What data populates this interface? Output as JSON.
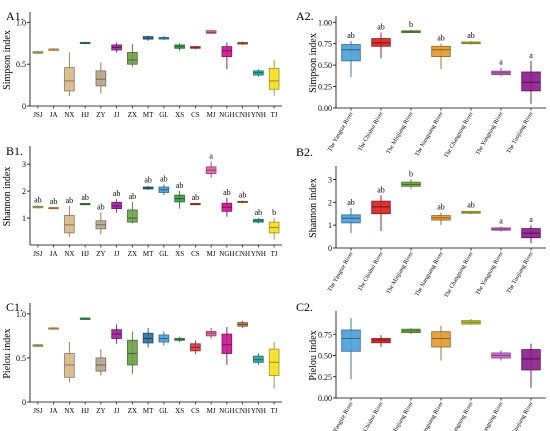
{
  "panels": [
    {
      "id": "A1",
      "label": "A1.",
      "ylabel": "Simpson index",
      "ylim": [
        0,
        1.1
      ],
      "yticks": [
        0,
        0.5,
        1.0
      ],
      "ytick_labels": [
        "0",
        "0.5",
        "1.0"
      ],
      "categories": [
        "JSJ",
        "JA",
        "NX",
        "HJ",
        "ZY",
        "JJ",
        "ZX",
        "MT",
        "GL",
        "XS",
        "CS",
        "MJ",
        "NGH",
        "CNH",
        "YNH",
        "TJ"
      ],
      "colors": [
        "#d8d87a",
        "#f2a65a",
        "#d8b98a",
        "#2e9b4b",
        "#b7a58a",
        "#a020a0",
        "#6f9e4a",
        "#2b6e9e",
        "#4a9fd8",
        "#3a9a4a",
        "#d43a3a",
        "#e060a8",
        "#c8148c",
        "#b8783a",
        "#1fa89c",
        "#f5e020"
      ],
      "boxes": [
        {
          "min": 0.62,
          "q1": 0.63,
          "med": 0.64,
          "q3": 0.65,
          "max": 0.66
        },
        {
          "min": 0.66,
          "q1": 0.67,
          "med": 0.68,
          "q3": 0.68,
          "max": 0.69
        },
        {
          "min": 0.12,
          "q1": 0.18,
          "med": 0.3,
          "q3": 0.46,
          "max": 0.64
        },
        {
          "min": 0.74,
          "q1": 0.75,
          "med": 0.75,
          "q3": 0.76,
          "max": 0.77
        },
        {
          "min": 0.15,
          "q1": 0.24,
          "med": 0.32,
          "q3": 0.42,
          "max": 0.52
        },
        {
          "min": 0.64,
          "q1": 0.67,
          "med": 0.7,
          "q3": 0.73,
          "max": 0.76
        },
        {
          "min": 0.47,
          "q1": 0.5,
          "med": 0.55,
          "q3": 0.64,
          "max": 0.74
        },
        {
          "min": 0.78,
          "q1": 0.8,
          "med": 0.81,
          "q3": 0.83,
          "max": 0.84
        },
        {
          "min": 0.79,
          "q1": 0.8,
          "med": 0.81,
          "q3": 0.82,
          "max": 0.84
        },
        {
          "min": 0.66,
          "q1": 0.69,
          "med": 0.71,
          "q3": 0.73,
          "max": 0.75
        },
        {
          "min": 0.68,
          "q1": 0.69,
          "med": 0.7,
          "q3": 0.71,
          "max": 0.72
        },
        {
          "min": 0.86,
          "q1": 0.87,
          "med": 0.88,
          "q3": 0.9,
          "max": 0.91
        },
        {
          "min": 0.44,
          "q1": 0.59,
          "med": 0.66,
          "q3": 0.71,
          "max": 0.76
        },
        {
          "min": 0.73,
          "q1": 0.74,
          "med": 0.75,
          "q3": 0.76,
          "max": 0.77
        },
        {
          "min": 0.35,
          "q1": 0.37,
          "med": 0.4,
          "q3": 0.42,
          "max": 0.44
        },
        {
          "min": 0.12,
          "q1": 0.2,
          "med": 0.3,
          "q3": 0.45,
          "max": 0.55
        }
      ],
      "letters": [
        "",
        "",
        "",
        "",
        "",
        "",
        "",
        "",
        "",
        "",
        "",
        "",
        "",
        "",
        "",
        ""
      ]
    },
    {
      "id": "B1",
      "label": "B1.",
      "ylabel": "Shannon index",
      "ylim": [
        0,
        3.6
      ],
      "yticks": [
        1,
        2,
        3
      ],
      "ytick_labels": [
        "1",
        "2",
        "3"
      ],
      "categories": [
        "JSJ",
        "JA",
        "NX",
        "HJ",
        "ZY",
        "JJ",
        "ZX",
        "MT",
        "GL",
        "XS",
        "CS",
        "MJ",
        "NGH",
        "CNH",
        "YNH",
        "TJ"
      ],
      "colors": [
        "#d8d87a",
        "#f2a65a",
        "#d8b98a",
        "#2e9b4b",
        "#b7a58a",
        "#a020a0",
        "#6f9e4a",
        "#2b6e9e",
        "#4a9fd8",
        "#3a9a4a",
        "#d43a3a",
        "#e060a8",
        "#c8148c",
        "#b8783a",
        "#1fa89c",
        "#f5e020"
      ],
      "boxes": [
        {
          "min": 1.35,
          "q1": 1.38,
          "med": 1.41,
          "q3": 1.44,
          "max": 1.47
        },
        {
          "min": 1.33,
          "q1": 1.35,
          "med": 1.37,
          "q3": 1.39,
          "max": 1.41
        },
        {
          "min": 0.3,
          "q1": 0.45,
          "med": 0.75,
          "q3": 1.1,
          "max": 1.45
        },
        {
          "min": 1.48,
          "q1": 1.5,
          "med": 1.52,
          "q3": 1.54,
          "max": 1.56
        },
        {
          "min": 0.4,
          "q1": 0.6,
          "med": 0.75,
          "q3": 0.9,
          "max": 1.2
        },
        {
          "min": 1.2,
          "q1": 1.35,
          "med": 1.45,
          "q3": 1.58,
          "max": 1.7
        },
        {
          "min": 0.8,
          "q1": 0.85,
          "med": 1.0,
          "q3": 1.3,
          "max": 1.6
        },
        {
          "min": 2.05,
          "q1": 2.08,
          "med": 2.12,
          "q3": 2.15,
          "max": 2.2
        },
        {
          "min": 1.85,
          "q1": 1.95,
          "med": 2.05,
          "q3": 2.15,
          "max": 2.25
        },
        {
          "min": 1.35,
          "q1": 1.6,
          "med": 1.72,
          "q3": 1.85,
          "max": 2.0
        },
        {
          "min": 1.48,
          "q1": 1.5,
          "med": 1.52,
          "q3": 1.54,
          "max": 1.56
        },
        {
          "min": 2.5,
          "q1": 2.65,
          "med": 2.78,
          "q3": 2.9,
          "max": 3.1
        },
        {
          "min": 1.05,
          "q1": 1.25,
          "med": 1.4,
          "q3": 1.55,
          "max": 1.75
        },
        {
          "min": 1.55,
          "q1": 1.58,
          "med": 1.6,
          "q3": 1.62,
          "max": 1.65
        },
        {
          "min": 0.8,
          "q1": 0.85,
          "med": 0.9,
          "q3": 0.95,
          "max": 1.0
        },
        {
          "min": 0.2,
          "q1": 0.45,
          "med": 0.65,
          "q3": 0.85,
          "max": 1.0
        }
      ],
      "letters": [
        "ab",
        "ab",
        "ab",
        "ab",
        "ab",
        "ab",
        "ab",
        "ab",
        "ab",
        "ab",
        "ab",
        "a",
        "ab",
        "ab",
        "ab",
        "b"
      ]
    },
    {
      "id": "C1",
      "label": "C1.",
      "ylabel": "Pielou index",
      "ylim": [
        0,
        1.1
      ],
      "yticks": [
        0,
        0.5,
        1.0
      ],
      "ytick_labels": [
        "0",
        "0.5",
        "1.0"
      ],
      "categories": [
        "JSJ",
        "JA",
        "NX",
        "HJ",
        "ZY",
        "JJ",
        "ZX",
        "MT",
        "GL",
        "XS",
        "CS",
        "MJ",
        "NGH",
        "CNH",
        "YNH",
        "TJ"
      ],
      "colors": [
        "#d8d87a",
        "#f2a65a",
        "#d8b98a",
        "#2e9b4b",
        "#b7a58a",
        "#a020a0",
        "#6f9e4a",
        "#2b6e9e",
        "#4a9fd8",
        "#3a9a4a",
        "#d43a3a",
        "#e060a8",
        "#c8148c",
        "#b8783a",
        "#1fa89c",
        "#f5e020"
      ],
      "boxes": [
        {
          "min": 0.62,
          "q1": 0.63,
          "med": 0.64,
          "q3": 0.65,
          "max": 0.66
        },
        {
          "min": 0.82,
          "q1": 0.83,
          "med": 0.83,
          "q3": 0.84,
          "max": 0.85
        },
        {
          "min": 0.22,
          "q1": 0.28,
          "med": 0.42,
          "q3": 0.55,
          "max": 0.68
        },
        {
          "min": 0.93,
          "q1": 0.94,
          "med": 0.95,
          "q3": 0.95,
          "max": 0.96
        },
        {
          "min": 0.3,
          "q1": 0.35,
          "med": 0.42,
          "q3": 0.5,
          "max": 0.6
        },
        {
          "min": 0.66,
          "q1": 0.72,
          "med": 0.77,
          "q3": 0.82,
          "max": 0.88
        },
        {
          "min": 0.32,
          "q1": 0.42,
          "med": 0.55,
          "q3": 0.7,
          "max": 0.8
        },
        {
          "min": 0.62,
          "q1": 0.67,
          "med": 0.72,
          "q3": 0.78,
          "max": 0.84
        },
        {
          "min": 0.64,
          "q1": 0.68,
          "med": 0.72,
          "q3": 0.76,
          "max": 0.8
        },
        {
          "min": 0.68,
          "q1": 0.7,
          "med": 0.71,
          "q3": 0.72,
          "max": 0.74
        },
        {
          "min": 0.54,
          "q1": 0.58,
          "med": 0.62,
          "q3": 0.66,
          "max": 0.7
        },
        {
          "min": 0.72,
          "q1": 0.75,
          "med": 0.78,
          "q3": 0.8,
          "max": 0.84
        },
        {
          "min": 0.42,
          "q1": 0.55,
          "med": 0.65,
          "q3": 0.77,
          "max": 0.85
        },
        {
          "min": 0.84,
          "q1": 0.86,
          "med": 0.88,
          "q3": 0.9,
          "max": 0.92
        },
        {
          "min": 0.42,
          "q1": 0.45,
          "med": 0.48,
          "q3": 0.52,
          "max": 0.55
        },
        {
          "min": 0.15,
          "q1": 0.3,
          "med": 0.45,
          "q3": 0.6,
          "max": 0.68
        }
      ],
      "letters": [
        "",
        "",
        "",
        "",
        "",
        "",
        "",
        "",
        "",
        "",
        "",
        "",
        "",
        "",
        "",
        ""
      ]
    },
    {
      "id": "A2",
      "label": "A2.",
      "ylabel": "Simpson index",
      "ylim": [
        0,
        1.05
      ],
      "yticks": [
        0,
        0.25,
        0.5,
        0.75,
        1.0
      ],
      "ytick_labels": [
        "0.00",
        "0.25",
        "0.50",
        "0.75",
        "1.00"
      ],
      "categories": [
        "The Yangtze River",
        "The Chishui River",
        "The Minjiang River",
        "The Nanguang River",
        "The Changning River",
        "The Yongning River",
        "The Tuojiang River"
      ],
      "colors": [
        "#4a9fd8",
        "#d42020",
        "#6aa83a",
        "#e09a30",
        "#c8c832",
        "#c860c8",
        "#8a1a8a"
      ],
      "boxes": [
        {
          "min": 0.36,
          "q1": 0.55,
          "med": 0.68,
          "q3": 0.74,
          "max": 0.78
        },
        {
          "min": 0.58,
          "q1": 0.72,
          "med": 0.76,
          "q3": 0.81,
          "max": 0.88
        },
        {
          "min": 0.87,
          "q1": 0.88,
          "med": 0.89,
          "q3": 0.9,
          "max": 0.91
        },
        {
          "min": 0.45,
          "q1": 0.6,
          "med": 0.68,
          "q3": 0.72,
          "max": 0.75
        },
        {
          "min": 0.74,
          "q1": 0.75,
          "med": 0.76,
          "q3": 0.77,
          "max": 0.78
        },
        {
          "min": 0.37,
          "q1": 0.39,
          "med": 0.41,
          "q3": 0.43,
          "max": 0.47
        },
        {
          "min": 0.05,
          "q1": 0.2,
          "med": 0.3,
          "q3": 0.42,
          "max": 0.55
        }
      ],
      "letters": [
        "ab",
        "ab",
        "b",
        "ab",
        "ab",
        "a",
        "a"
      ]
    },
    {
      "id": "B2",
      "label": "B2.",
      "ylabel": "Shannon index",
      "ylim": [
        0,
        3.5
      ],
      "yticks": [
        0,
        1,
        2,
        3
      ],
      "ytick_labels": [
        "0",
        "1",
        "2",
        "3"
      ],
      "categories": [
        "The Yangtze River",
        "The Chishui River",
        "The Minjiang River",
        "The Nanguang River",
        "The Changning River",
        "The Yongning River",
        "The Tuojiang River"
      ],
      "colors": [
        "#4a9fd8",
        "#d42020",
        "#6aa83a",
        "#e09a30",
        "#c8c832",
        "#c860c8",
        "#8a1a8a"
      ],
      "boxes": [
        {
          "min": 0.65,
          "q1": 1.1,
          "med": 1.3,
          "q3": 1.45,
          "max": 1.75
        },
        {
          "min": 0.75,
          "q1": 1.5,
          "med": 1.8,
          "q3": 2.05,
          "max": 2.3
        },
        {
          "min": 2.6,
          "q1": 2.7,
          "med": 2.78,
          "q3": 2.88,
          "max": 3.0
        },
        {
          "min": 1.0,
          "q1": 1.22,
          "med": 1.32,
          "q3": 1.42,
          "max": 1.55
        },
        {
          "min": 1.48,
          "q1": 1.52,
          "med": 1.56,
          "q3": 1.6,
          "max": 1.63
        },
        {
          "min": 0.72,
          "q1": 0.78,
          "med": 0.82,
          "q3": 0.88,
          "max": 0.93
        },
        {
          "min": 0.2,
          "q1": 0.45,
          "med": 0.65,
          "q3": 0.85,
          "max": 1.0
        }
      ],
      "letters": [
        "ab",
        "ab",
        "b",
        "ab",
        "ab",
        "a",
        "a"
      ]
    },
    {
      "id": "C2",
      "label": "C2.",
      "ylabel": "Pielou index",
      "ylim": [
        0,
        1.0
      ],
      "yticks": [
        0,
        0.25,
        0.5,
        0.75
      ],
      "ytick_labels": [
        "0.00",
        "0.25",
        "0.50",
        "0.75"
      ],
      "categories": [
        "The Yangtze River",
        "The Chishui River",
        "The Minjiang River",
        "The Nanguang River",
        "The Changning River",
        "The Yongning River",
        "The Tuojiang River"
      ],
      "colors": [
        "#4a9fd8",
        "#d42020",
        "#6aa83a",
        "#e09a30",
        "#c8c832",
        "#c860c8",
        "#8a1a8a"
      ],
      "boxes": [
        {
          "min": 0.22,
          "q1": 0.55,
          "med": 0.7,
          "q3": 0.8,
          "max": 0.94
        },
        {
          "min": 0.6,
          "q1": 0.65,
          "med": 0.68,
          "q3": 0.7,
          "max": 0.74
        },
        {
          "min": 0.75,
          "q1": 0.77,
          "med": 0.79,
          "q3": 0.81,
          "max": 0.82
        },
        {
          "min": 0.44,
          "q1": 0.6,
          "med": 0.7,
          "q3": 0.78,
          "max": 0.85
        },
        {
          "min": 0.86,
          "q1": 0.87,
          "med": 0.89,
          "q3": 0.91,
          "max": 0.93
        },
        {
          "min": 0.44,
          "q1": 0.47,
          "med": 0.5,
          "q3": 0.53,
          "max": 0.56
        },
        {
          "min": 0.12,
          "q1": 0.33,
          "med": 0.46,
          "q3": 0.57,
          "max": 0.64
        }
      ],
      "letters": [
        "",
        "",
        "",
        "",
        "",
        "",
        ""
      ]
    }
  ],
  "chart_data": [
    {
      "type": "box",
      "panel": "A1",
      "ylabel": "Simpson index",
      "ylim": [
        0,
        1.1
      ],
      "categories": [
        "JSJ",
        "JA",
        "NX",
        "HJ",
        "ZY",
        "JJ",
        "ZX",
        "MT",
        "GL",
        "XS",
        "CS",
        "MJ",
        "NGH",
        "CNH",
        "YNH",
        "TJ"
      ],
      "medians": [
        0.64,
        0.68,
        0.3,
        0.75,
        0.32,
        0.7,
        0.55,
        0.81,
        0.81,
        0.71,
        0.7,
        0.88,
        0.66,
        0.75,
        0.4,
        0.3
      ]
    },
    {
      "type": "box",
      "panel": "B1",
      "ylabel": "Shannon index",
      "ylim": [
        0,
        3.6
      ],
      "categories": [
        "JSJ",
        "JA",
        "NX",
        "HJ",
        "ZY",
        "JJ",
        "ZX",
        "MT",
        "GL",
        "XS",
        "CS",
        "MJ",
        "NGH",
        "CNH",
        "YNH",
        "TJ"
      ],
      "medians": [
        1.41,
        1.37,
        0.75,
        1.52,
        0.75,
        1.45,
        1.0,
        2.12,
        2.05,
        1.72,
        1.52,
        2.78,
        1.4,
        1.6,
        0.9,
        0.65
      ],
      "letters": [
        "ab",
        "ab",
        "ab",
        "ab",
        "ab",
        "ab",
        "ab",
        "ab",
        "ab",
        "ab",
        "ab",
        "a",
        "ab",
        "ab",
        "ab",
        "b"
      ]
    },
    {
      "type": "box",
      "panel": "C1",
      "ylabel": "Pielou index",
      "ylim": [
        0,
        1.1
      ],
      "categories": [
        "JSJ",
        "JA",
        "NX",
        "HJ",
        "ZY",
        "JJ",
        "ZX",
        "MT",
        "GL",
        "XS",
        "CS",
        "MJ",
        "NGH",
        "CNH",
        "YNH",
        "TJ"
      ],
      "medians": [
        0.64,
        0.83,
        0.42,
        0.95,
        0.42,
        0.77,
        0.55,
        0.72,
        0.72,
        0.71,
        0.62,
        0.78,
        0.65,
        0.88,
        0.48,
        0.45
      ]
    },
    {
      "type": "box",
      "panel": "A2",
      "ylabel": "Simpson index",
      "ylim": [
        0,
        1.05
      ],
      "categories": [
        "The Yangtze River",
        "The Chishui River",
        "The Minjiang River",
        "The Nanguang River",
        "The Changning River",
        "The Yongning River",
        "The Tuojiang River"
      ],
      "medians": [
        0.68,
        0.76,
        0.89,
        0.68,
        0.76,
        0.41,
        0.3
      ],
      "letters": [
        "ab",
        "ab",
        "b",
        "ab",
        "ab",
        "a",
        "a"
      ]
    },
    {
      "type": "box",
      "panel": "B2",
      "ylabel": "Shannon index",
      "ylim": [
        0,
        3.5
      ],
      "categories": [
        "The Yangtze River",
        "The Chishui River",
        "The Minjiang River",
        "The Nanguang River",
        "The Changning River",
        "The Yongning River",
        "The Tuojiang River"
      ],
      "medians": [
        1.3,
        1.8,
        2.78,
        1.32,
        1.56,
        0.82,
        0.65
      ],
      "letters": [
        "ab",
        "ab",
        "b",
        "ab",
        "ab",
        "a",
        "a"
      ]
    },
    {
      "type": "box",
      "panel": "C2",
      "ylabel": "Pielou index",
      "ylim": [
        0,
        1.0
      ],
      "categories": [
        "The Yangtze River",
        "The Chishui River",
        "The Minjiang River",
        "The Nanguang River",
        "The Changning River",
        "The Yongning River",
        "The Tuojiang River"
      ],
      "medians": [
        0.7,
        0.68,
        0.79,
        0.7,
        0.89,
        0.5,
        0.46
      ]
    }
  ]
}
